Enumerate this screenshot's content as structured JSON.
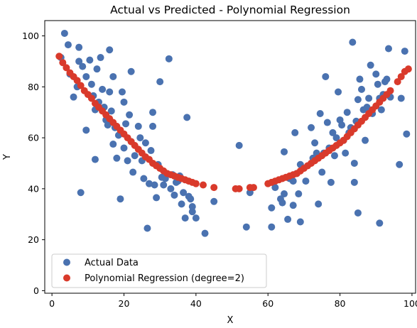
{
  "chart_data": {
    "type": "scatter",
    "title": "Actual vs Predicted - Polynomial Regression",
    "xlabel": "X",
    "ylabel": "Y",
    "xlim": [
      -2,
      101
    ],
    "ylim": [
      -1,
      106
    ],
    "xticks": [
      0,
      20,
      40,
      60,
      80,
      100
    ],
    "yticks": [
      0,
      20,
      40,
      60,
      80,
      100
    ],
    "grid": false,
    "legend_position": "lower-left",
    "colors": {
      "actual": "#4a72b0",
      "predicted": "#d93a2b"
    },
    "series": [
      {
        "name": "Actual Data",
        "kind": "points",
        "points": [
          [
            2.5,
            91.5
          ],
          [
            3.5,
            101
          ],
          [
            4.5,
            96.5
          ],
          [
            5,
            85
          ],
          [
            6,
            76
          ],
          [
            7,
            80
          ],
          [
            7.5,
            95.5
          ],
          [
            7.5,
            90
          ],
          [
            8,
            38.5
          ],
          [
            8.5,
            88
          ],
          [
            9.5,
            84
          ],
          [
            9.5,
            63
          ],
          [
            10.5,
            90.5
          ],
          [
            11,
            81
          ],
          [
            11.5,
            76.5
          ],
          [
            12,
            71
          ],
          [
            12,
            51.5
          ],
          [
            12.5,
            87
          ],
          [
            13,
            74
          ],
          [
            13.5,
            91.5
          ],
          [
            14,
            79
          ],
          [
            14.5,
            72
          ],
          [
            15,
            67
          ],
          [
            15.5,
            65
          ],
          [
            16,
            78
          ],
          [
            16,
            94.5
          ],
          [
            16.5,
            70.5
          ],
          [
            17,
            84
          ],
          [
            17,
            57.5
          ],
          [
            17.5,
            64
          ],
          [
            18,
            52
          ],
          [
            18.5,
            61
          ],
          [
            19,
            36
          ],
          [
            19.5,
            78
          ],
          [
            20,
            74
          ],
          [
            20,
            56
          ],
          [
            20.5,
            65.5
          ],
          [
            21,
            51
          ],
          [
            21.5,
            69
          ],
          [
            22,
            86
          ],
          [
            22,
            58.5
          ],
          [
            22.5,
            46.5
          ],
          [
            23,
            53
          ],
          [
            24,
            64.5
          ],
          [
            24.5,
            60
          ],
          [
            25,
            51
          ],
          [
            25.5,
            44
          ],
          [
            26,
            58
          ],
          [
            26.5,
            24.5
          ],
          [
            27,
            42
          ],
          [
            27.5,
            55
          ],
          [
            28,
            70
          ],
          [
            28,
            64.5
          ],
          [
            28.5,
            41.5
          ],
          [
            29,
            36.5
          ],
          [
            29.5,
            49.5
          ],
          [
            30,
            82
          ],
          [
            30.5,
            44.5
          ],
          [
            31,
            41.5
          ],
          [
            31.5,
            44
          ],
          [
            32.5,
            91
          ],
          [
            33,
            40
          ],
          [
            33.5,
            45.5
          ],
          [
            34,
            37.5
          ],
          [
            34.5,
            42.5
          ],
          [
            35,
            43
          ],
          [
            35.5,
            45
          ],
          [
            36,
            34
          ],
          [
            36.5,
            38.5
          ],
          [
            37,
            28.5
          ],
          [
            37.5,
            68
          ],
          [
            38,
            37
          ],
          [
            38.5,
            36
          ],
          [
            39,
            33
          ],
          [
            39,
            31
          ],
          [
            40,
            28.5
          ],
          [
            42.5,
            22.5
          ],
          [
            45,
            35
          ],
          [
            52,
            57
          ],
          [
            54,
            25
          ],
          [
            55,
            38.5
          ],
          [
            61,
            25
          ],
          [
            61,
            32.5
          ],
          [
            62,
            40.5
          ],
          [
            63.5,
            36
          ],
          [
            64,
            34.5
          ],
          [
            64.5,
            38
          ],
          [
            64.5,
            54.5
          ],
          [
            65.5,
            28
          ],
          [
            66,
            44
          ],
          [
            67,
            33.5
          ],
          [
            67,
            43
          ],
          [
            67.5,
            62
          ],
          [
            68,
            46
          ],
          [
            68.5,
            38
          ],
          [
            69,
            27
          ],
          [
            69,
            49.5
          ],
          [
            70.5,
            43
          ],
          [
            72,
            64
          ],
          [
            72.5,
            52
          ],
          [
            73,
            58
          ],
          [
            73.5,
            54
          ],
          [
            74,
            34
          ],
          [
            74.5,
            69.5
          ],
          [
            75,
            46.5
          ],
          [
            75.5,
            54
          ],
          [
            76,
            84
          ],
          [
            76.5,
            66
          ],
          [
            77,
            56
          ],
          [
            77.5,
            42.5
          ],
          [
            78,
            62
          ],
          [
            78.5,
            53
          ],
          [
            79,
            60
          ],
          [
            79.5,
            78
          ],
          [
            80,
            67
          ],
          [
            80.5,
            65
          ],
          [
            81,
            59
          ],
          [
            81.5,
            54
          ],
          [
            82,
            70
          ],
          [
            82.5,
            62
          ],
          [
            83,
            64
          ],
          [
            83.5,
            97.5
          ],
          [
            84,
            50
          ],
          [
            84,
            42.5
          ],
          [
            84.5,
            66.5
          ],
          [
            85,
            75
          ],
          [
            85,
            30.5
          ],
          [
            85.5,
            83
          ],
          [
            86,
            79
          ],
          [
            86.5,
            71
          ],
          [
            87,
            59
          ],
          [
            87.5,
            72
          ],
          [
            88,
            75.5
          ],
          [
            88.5,
            88.5
          ],
          [
            89,
            69.5
          ],
          [
            90,
            85
          ],
          [
            90.5,
            81
          ],
          [
            91,
            75.5
          ],
          [
            91,
            26.5
          ],
          [
            91.5,
            71
          ],
          [
            92,
            77
          ],
          [
            92.5,
            82
          ],
          [
            93,
            83
          ],
          [
            93.5,
            95
          ],
          [
            94,
            76
          ],
          [
            96.5,
            49.5
          ],
          [
            97,
            75.5
          ],
          [
            98,
            94
          ],
          [
            98.5,
            61.5
          ]
        ]
      },
      {
        "name": "Polynomial Regression (degree=2)",
        "kind": "fit",
        "points": [
          [
            2,
            92
          ],
          [
            3,
            89.5
          ],
          [
            4,
            87.5
          ],
          [
            5,
            85.5
          ],
          [
            6,
            84
          ],
          [
            7,
            82.5
          ],
          [
            8,
            80.5
          ],
          [
            9,
            78.5
          ],
          [
            10,
            77
          ],
          [
            11,
            75.5
          ],
          [
            12,
            73.5
          ],
          [
            13,
            72
          ],
          [
            14,
            70.5
          ],
          [
            15,
            69
          ],
          [
            16,
            67.5
          ],
          [
            17,
            66
          ],
          [
            18,
            64.5
          ],
          [
            19,
            63
          ],
          [
            20,
            61.5
          ],
          [
            21,
            60
          ],
          [
            22,
            58.5
          ],
          [
            23,
            57
          ],
          [
            24,
            55.5
          ],
          [
            25,
            54
          ],
          [
            26,
            52.5
          ],
          [
            27,
            51.5
          ],
          [
            28,
            50
          ],
          [
            29,
            49
          ],
          [
            30,
            48
          ],
          [
            31,
            47
          ],
          [
            32,
            46
          ],
          [
            33,
            45.5
          ],
          [
            34,
            45
          ],
          [
            35,
            44.5
          ],
          [
            36,
            44
          ],
          [
            37,
            43.5
          ],
          [
            38,
            43
          ],
          [
            39,
            42.5
          ],
          [
            40,
            42
          ],
          [
            42,
            41.5
          ],
          [
            45,
            40.5
          ],
          [
            51,
            40
          ],
          [
            52,
            40
          ],
          [
            55,
            40.5
          ],
          [
            56,
            40.5
          ],
          [
            60,
            42
          ],
          [
            61,
            42.5
          ],
          [
            62,
            43
          ],
          [
            63,
            43.5
          ],
          [
            64,
            44
          ],
          [
            65,
            44.5
          ],
          [
            66,
            45
          ],
          [
            67,
            45.5
          ],
          [
            68,
            46
          ],
          [
            69,
            47
          ],
          [
            70,
            48
          ],
          [
            71,
            49
          ],
          [
            72,
            50
          ],
          [
            73,
            51
          ],
          [
            74,
            52
          ],
          [
            75,
            53
          ],
          [
            76,
            54
          ],
          [
            77,
            55
          ],
          [
            78,
            56
          ],
          [
            79,
            57
          ],
          [
            80,
            58
          ],
          [
            81,
            59
          ],
          [
            82,
            60.5
          ],
          [
            83,
            62
          ],
          [
            84,
            63.5
          ],
          [
            85,
            65
          ],
          [
            86,
            66.5
          ],
          [
            87,
            68
          ],
          [
            88,
            69.5
          ],
          [
            89,
            71
          ],
          [
            90,
            72.5
          ],
          [
            91,
            74
          ],
          [
            92,
            75.5
          ],
          [
            93,
            77
          ],
          [
            94,
            78.5
          ],
          [
            96,
            82
          ],
          [
            97,
            84
          ],
          [
            98,
            86
          ],
          [
            99,
            87
          ]
        ]
      }
    ]
  }
}
